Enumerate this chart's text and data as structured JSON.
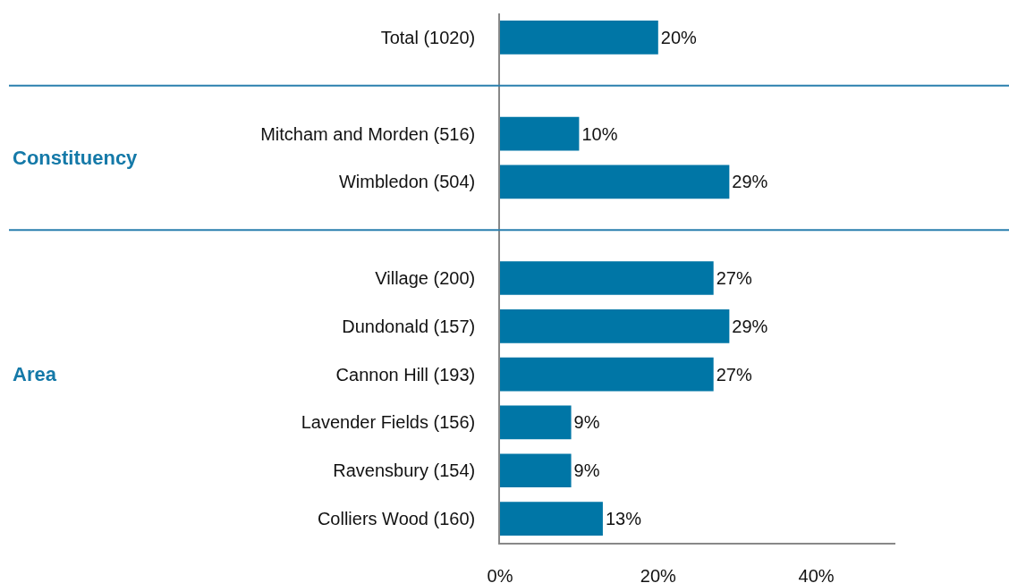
{
  "chart_data": {
    "type": "bar",
    "orientation": "horizontal",
    "categories": [
      "Total (1020)",
      null,
      "Mitcham and Morden (516)",
      "Wimbledon (504)",
      null,
      "Village (200)",
      "Dundonald (157)",
      "Cannon Hill (193)",
      "Lavender Fields (156)",
      "Ravensbury (154)",
      "Colliers Wood (160)"
    ],
    "values": [
      20,
      null,
      10,
      29,
      null,
      27,
      29,
      27,
      9,
      9,
      13
    ],
    "value_labels": [
      "20%",
      null,
      "10%",
      "29%",
      null,
      "27%",
      "29%",
      "27%",
      "9%",
      "9%",
      "13%"
    ],
    "color": "#0076a6",
    "xlim": [
      0,
      50
    ],
    "xticks": [
      {
        "value": 0,
        "label": "0%"
      },
      {
        "value": 20,
        "label": "20%"
      },
      {
        "value": 40,
        "label": "40%"
      }
    ],
    "grid": false,
    "legend": false,
    "annotations": [
      "Constituency",
      "Area"
    ]
  }
}
